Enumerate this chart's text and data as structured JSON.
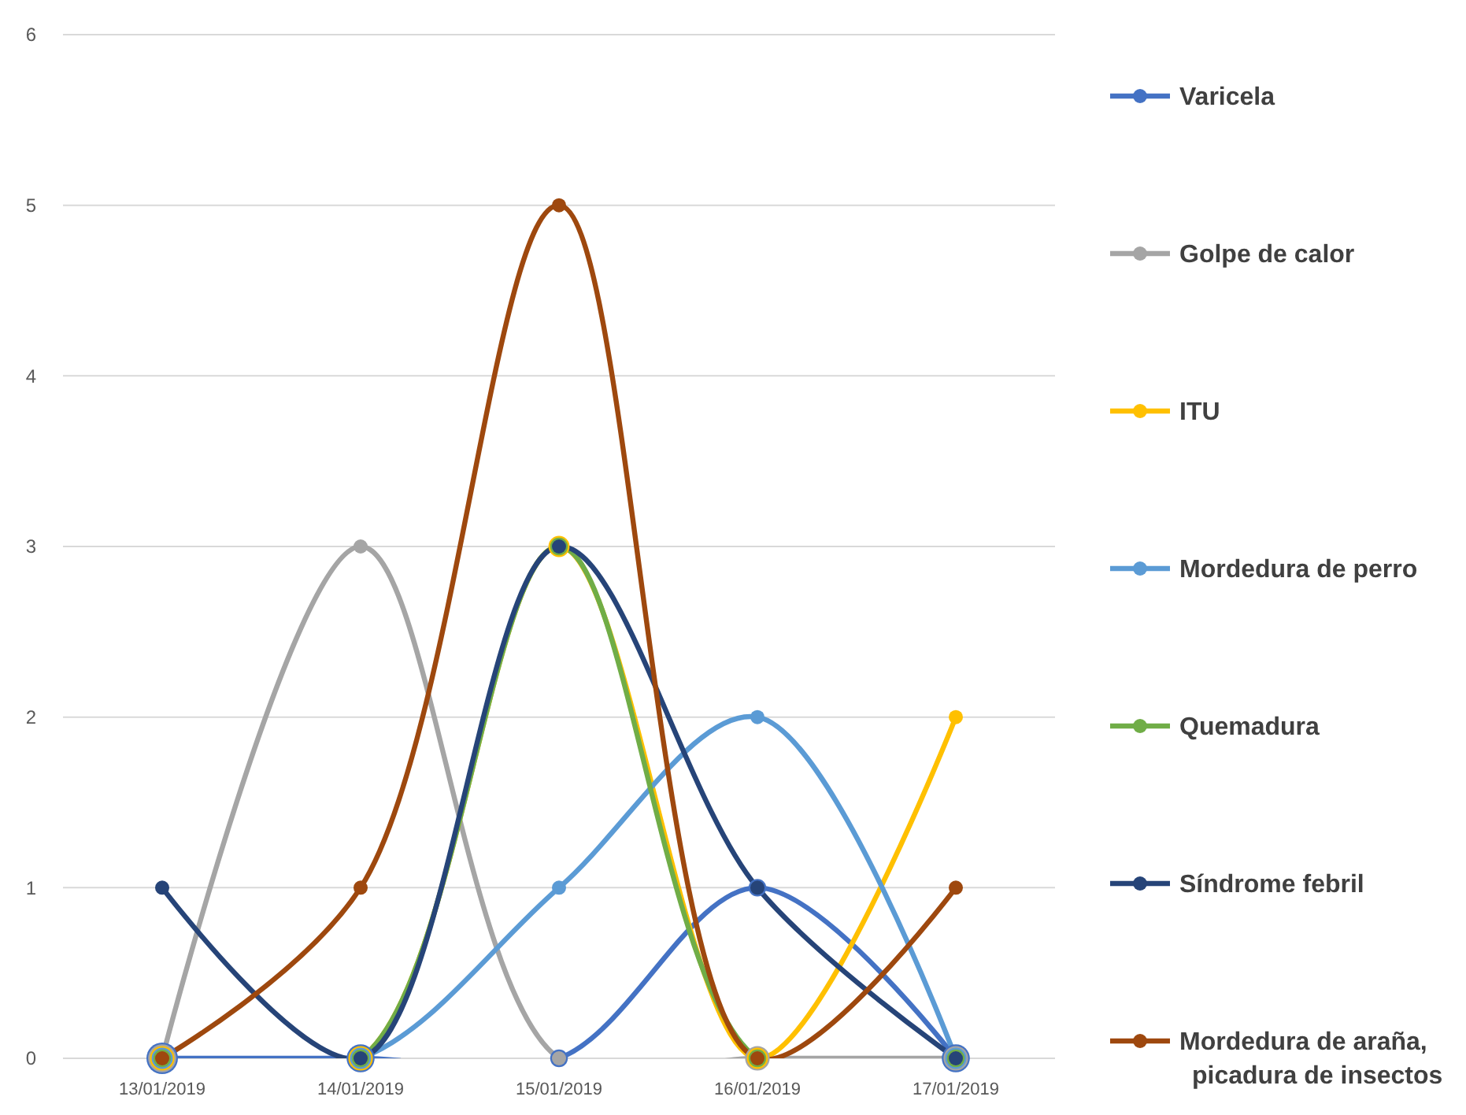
{
  "chart_data": {
    "type": "line",
    "categories": [
      "13/01/2019",
      "14/01/2019",
      "15/01/2019",
      "16/01/2019",
      "17/01/2019"
    ],
    "series": [
      {
        "name": "Varicela",
        "color": "#4472c4",
        "values": [
          0,
          0,
          0,
          1,
          0
        ]
      },
      {
        "name": "Golpe de calor",
        "color": "#a5a5a5",
        "values": [
          0,
          3,
          0,
          0,
          0
        ]
      },
      {
        "name": "ITU",
        "color": "#ffc000",
        "values": [
          0,
          0,
          3,
          0,
          2
        ]
      },
      {
        "name": "Mordedura de perro",
        "color": "#5b9bd5",
        "values": [
          0,
          0,
          1,
          2,
          0
        ]
      },
      {
        "name": "Quemadura",
        "color": "#70ad47",
        "values": [
          0,
          0,
          3,
          0,
          0
        ]
      },
      {
        "name": "Síndrome febril",
        "color": "#264478",
        "values": [
          1,
          0,
          3,
          1,
          0
        ]
      },
      {
        "name": "Mordedura de araña, picadura de insectos",
        "color": "#9e480e",
        "values": [
          0,
          1,
          5,
          0,
          1
        ]
      }
    ],
    "ylim": [
      0,
      6
    ],
    "yticks": [
      0,
      1,
      2,
      3,
      4,
      5,
      6
    ],
    "grid": "y",
    "legend": "right",
    "marker": "circle",
    "line_style": "solid"
  }
}
